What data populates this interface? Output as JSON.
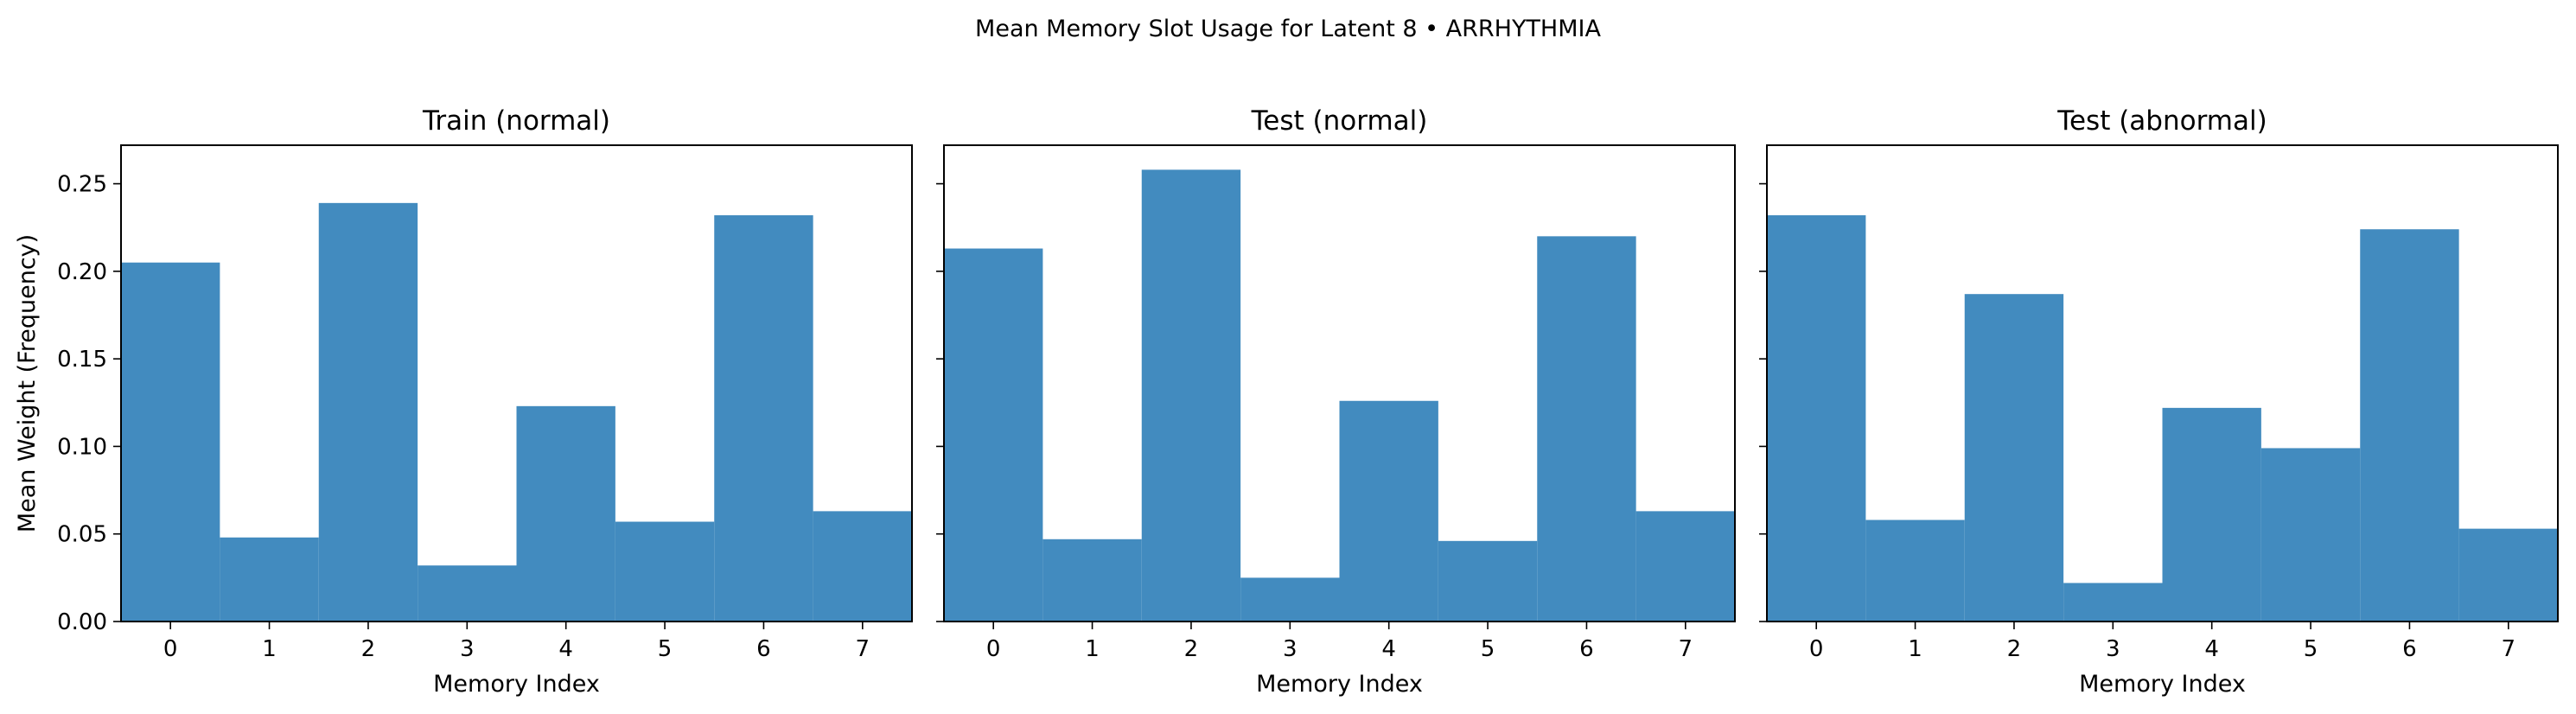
{
  "figure": {
    "title": "Mean Memory Slot Usage for Latent 8 • ARRHYTHMIA"
  },
  "chart_data": [
    {
      "type": "bar",
      "title": "Train (normal)",
      "xlabel": "Memory Index",
      "ylabel": "Mean Weight (Frequency)",
      "categories": [
        "0",
        "1",
        "2",
        "3",
        "4",
        "5",
        "6",
        "7"
      ],
      "values": [
        0.205,
        0.048,
        0.239,
        0.032,
        0.123,
        0.057,
        0.232,
        0.063
      ],
      "ylim": [
        0,
        0.272
      ],
      "yticks": [
        "0.00",
        "0.05",
        "0.10",
        "0.15",
        "0.20",
        "0.25"
      ],
      "bar_color": "#428bbf",
      "grid": false,
      "legend": "none"
    },
    {
      "type": "bar",
      "title": "Test (normal)",
      "xlabel": "Memory Index",
      "ylabel": "",
      "categories": [
        "0",
        "1",
        "2",
        "3",
        "4",
        "5",
        "6",
        "7"
      ],
      "values": [
        0.213,
        0.047,
        0.258,
        0.025,
        0.126,
        0.046,
        0.22,
        0.063
      ],
      "ylim": [
        0,
        0.272
      ],
      "yticks": [],
      "bar_color": "#428bbf",
      "grid": false,
      "legend": "none"
    },
    {
      "type": "bar",
      "title": "Test (abnormal)",
      "xlabel": "Memory Index",
      "ylabel": "",
      "categories": [
        "0",
        "1",
        "2",
        "3",
        "4",
        "5",
        "6",
        "7"
      ],
      "values": [
        0.232,
        0.058,
        0.187,
        0.022,
        0.122,
        0.099,
        0.224,
        0.053
      ],
      "ylim": [
        0,
        0.272
      ],
      "yticks": [],
      "bar_color": "#428bbf",
      "grid": false,
      "legend": "none"
    }
  ]
}
